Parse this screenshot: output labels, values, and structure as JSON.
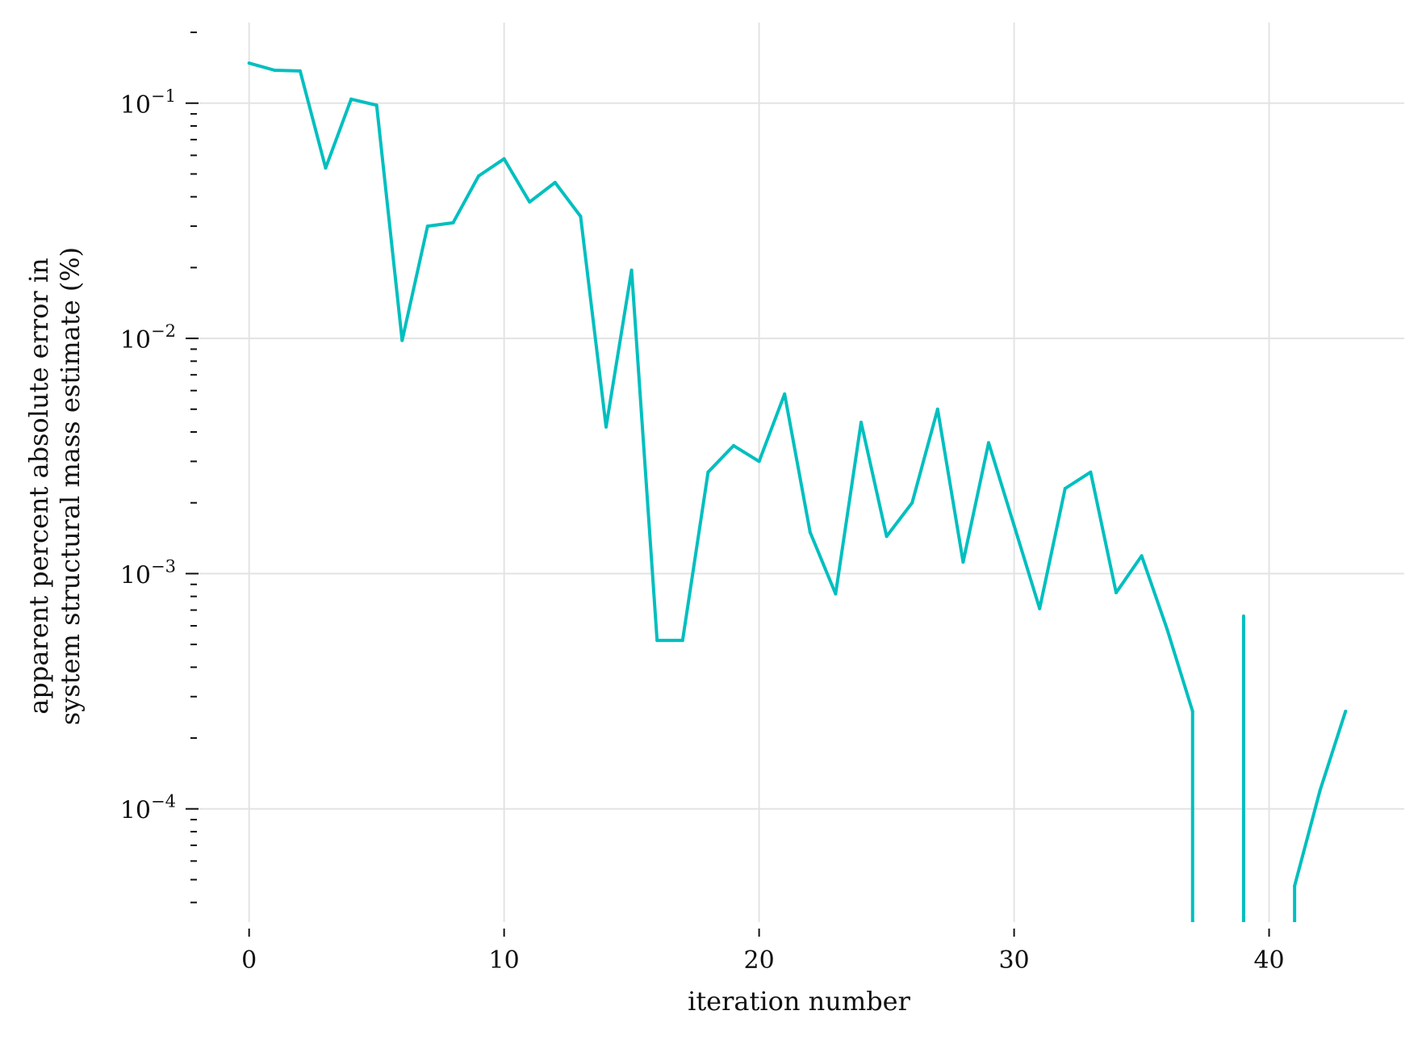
{
  "chart_data": {
    "type": "line",
    "xlabel": "iteration number",
    "ylabel_lines": [
      "apparent percent absolute error in",
      "system structural mass estimate (%)"
    ],
    "yscale": "log",
    "xlim": [
      -2.3,
      45.3
    ],
    "ylim": [
      3.3e-05,
      0.22
    ],
    "grid": true,
    "x_ticks": [
      0,
      10,
      20,
      30,
      40
    ],
    "y_ticks": [
      0.1,
      0.01,
      0.001,
      0.0001
    ],
    "y_tick_labels": [
      {
        "base": "10",
        "exp": "−1"
      },
      {
        "base": "10",
        "exp": "−2"
      },
      {
        "base": "10",
        "exp": "−3"
      },
      {
        "base": "10",
        "exp": "−4"
      }
    ],
    "line_color": "#00bfbf",
    "series": [
      {
        "x": [
          0,
          1,
          2,
          3,
          4,
          5,
          6,
          7,
          8,
          9,
          10,
          11,
          12,
          13,
          14,
          15,
          16,
          17,
          18,
          19,
          20,
          21,
          22,
          23,
          24,
          25,
          26,
          27,
          28,
          29,
          30,
          31,
          32,
          33,
          34,
          35,
          36,
          37,
          38,
          39,
          40,
          41,
          42,
          43
        ],
        "values": [
          0.148,
          0.138,
          0.137,
          0.053,
          0.104,
          0.098,
          0.0098,
          0.03,
          0.031,
          0.049,
          0.058,
          0.038,
          0.046,
          0.033,
          0.0042,
          0.0195,
          0.00052,
          0.00052,
          0.0027,
          0.0035,
          0.003,
          0.0058,
          0.0015,
          0.00082,
          0.0044,
          0.00144,
          0.002,
          0.005,
          0.00112,
          0.0036,
          0.0016,
          0.00071,
          0.0023,
          0.0027,
          0.00083,
          0.00119,
          0.00058,
          0.00026,
          null,
          0.00066,
          null,
          4.7e-05,
          0.00012,
          0.00026
        ],
        "drop_to_axis_at": [
          37,
          39,
          41
        ]
      }
    ]
  }
}
